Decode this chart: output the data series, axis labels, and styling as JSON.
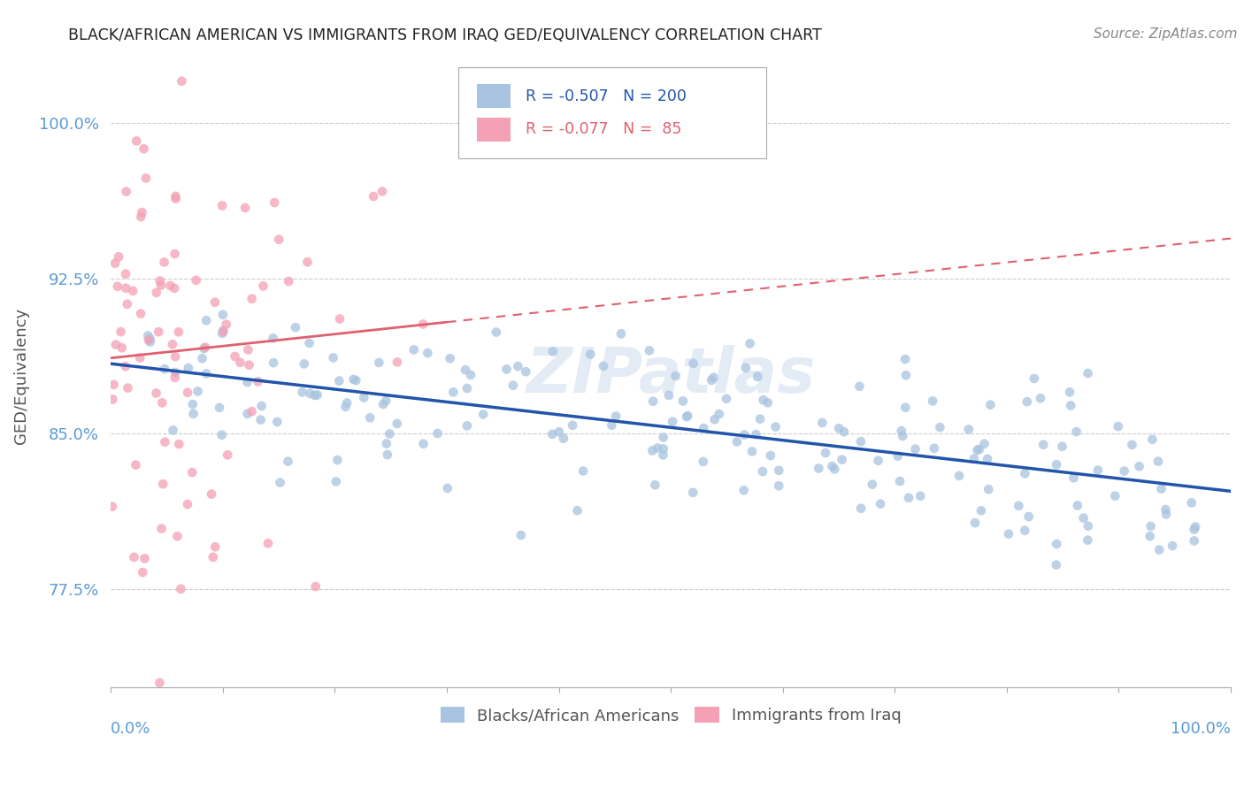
{
  "title": "BLACK/AFRICAN AMERICAN VS IMMIGRANTS FROM IRAQ GED/EQUIVALENCY CORRELATION CHART",
  "source_text": "Source: ZipAtlas.com",
  "ylabel": "GED/Equivalency",
  "xlim": [
    0.0,
    1.0
  ],
  "ylim": [
    0.728,
    1.028
  ],
  "ytick_labels": [
    "77.5%",
    "85.0%",
    "92.5%",
    "100.0%"
  ],
  "ytick_values": [
    0.775,
    0.85,
    0.925,
    1.0
  ],
  "r_blue": -0.507,
  "n_blue": 200,
  "r_pink": -0.077,
  "n_pink": 85,
  "blue_color": "#a8c4e0",
  "pink_color": "#f4a0b5",
  "blue_line_color": "#2255aa",
  "pink_line_color": "#e06070",
  "legend_label_blue": "Blacks/African Americans",
  "legend_label_pink": "Immigrants from Iraq",
  "watermark": "ZIPatlas",
  "background_color": "#ffffff",
  "plot_bg_color": "#ffffff",
  "grid_color": "#cccccc",
  "title_color": "#222222",
  "axis_label_color": "#5b9bd5"
}
